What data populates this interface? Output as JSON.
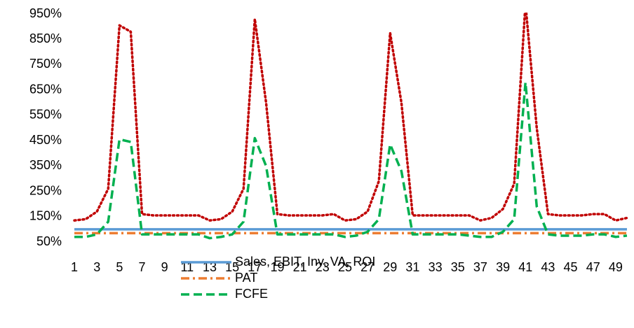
{
  "chart_data": {
    "type": "line",
    "categories": [
      "1",
      null,
      "3",
      null,
      "5",
      null,
      "7",
      null,
      "9",
      null,
      "11",
      null,
      "13",
      null,
      "15",
      null,
      "17",
      null,
      "19",
      null,
      "21",
      null,
      "23",
      null,
      "25",
      null,
      "27",
      null,
      "29",
      null,
      "31",
      null,
      "33",
      null,
      "35",
      null,
      "37",
      null,
      "39",
      null,
      "41",
      null,
      "43",
      null,
      "45",
      null,
      "47",
      null,
      "49",
      null
    ],
    "ylim": [
      50,
      950
    ],
    "yticks": [
      {
        "value": 50,
        "label": "50%"
      },
      {
        "value": 150,
        "label": "150%"
      },
      {
        "value": 250,
        "label": "250%"
      },
      {
        "value": 350,
        "label": "350%"
      },
      {
        "value": 450,
        "label": "450%"
      },
      {
        "value": 550,
        "label": "550%"
      },
      {
        "value": 650,
        "label": "650%"
      },
      {
        "value": 750,
        "label": "750%"
      },
      {
        "value": 850,
        "label": "850%"
      },
      {
        "value": 950,
        "label": "950%"
      }
    ],
    "grid": false,
    "legend": "bottom",
    "series": [
      {
        "color": "#c00000",
        "dash": "dotted",
        "values": [
          135,
          140,
          170,
          260,
          905,
          880,
          160,
          155,
          155,
          155,
          155,
          155,
          135,
          140,
          170,
          260,
          930,
          600,
          160,
          155,
          155,
          155,
          155,
          160,
          135,
          140,
          170,
          290,
          875,
          600,
          155,
          155,
          155,
          155,
          155,
          155,
          135,
          145,
          180,
          280,
          990,
          500,
          160,
          155,
          155,
          155,
          160,
          160,
          135,
          145
        ]
      },
      {
        "name": "Sales, EBIT, Inv, VA, ROI",
        "color": "#5b9bd5",
        "dash": "solid",
        "values": [
          100,
          100,
          100,
          100,
          100,
          100,
          100,
          100,
          100,
          100,
          100,
          100,
          100,
          100,
          100,
          100,
          100,
          100,
          100,
          100,
          100,
          100,
          100,
          100,
          100,
          100,
          100,
          100,
          100,
          100,
          100,
          100,
          100,
          100,
          100,
          100,
          100,
          100,
          100,
          100,
          100,
          100,
          100,
          100,
          100,
          100,
          100,
          100,
          100,
          100
        ]
      },
      {
        "name": "PAT",
        "color": "#ed7d31",
        "dash": "dashdot",
        "values": [
          85,
          85,
          85,
          85,
          85,
          85,
          85,
          85,
          85,
          85,
          85,
          85,
          85,
          85,
          85,
          85,
          85,
          85,
          85,
          85,
          85,
          85,
          85,
          85,
          85,
          85,
          85,
          85,
          85,
          85,
          85,
          85,
          85,
          85,
          85,
          85,
          85,
          85,
          85,
          85,
          85,
          85,
          85,
          85,
          85,
          85,
          85,
          85,
          85,
          85
        ]
      },
      {
        "name": "FCFE",
        "color": "#00b050",
        "dash": "dashed",
        "values": [
          70,
          70,
          80,
          130,
          455,
          445,
          80,
          80,
          80,
          80,
          80,
          80,
          65,
          70,
          80,
          130,
          460,
          350,
          80,
          80,
          80,
          80,
          80,
          80,
          70,
          75,
          90,
          140,
          435,
          330,
          80,
          80,
          80,
          80,
          80,
          75,
          70,
          70,
          90,
          140,
          680,
          190,
          80,
          75,
          75,
          75,
          80,
          80,
          70,
          75
        ]
      }
    ]
  }
}
